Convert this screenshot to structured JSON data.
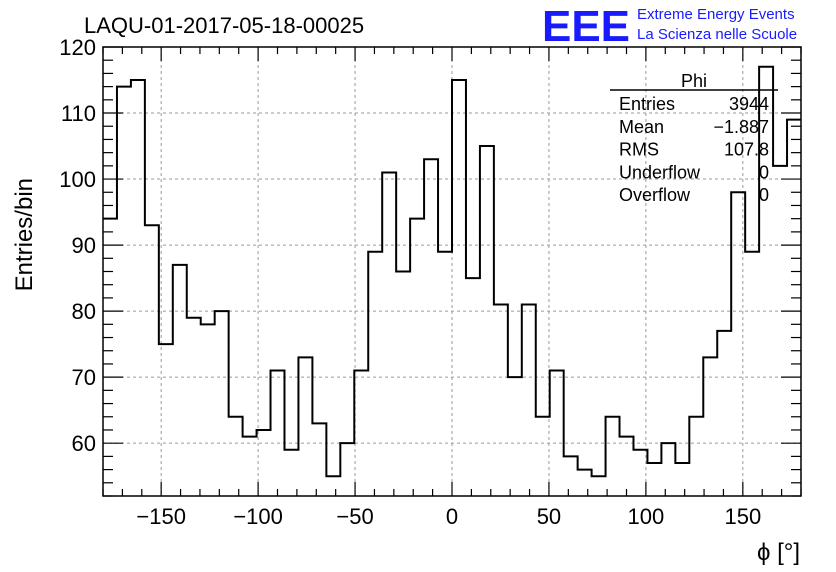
{
  "chart_data": {
    "type": "bar",
    "title": "LAQU-01-2017-05-18-00025",
    "xlabel": "ϕ [°]",
    "ylabel": "Entries/bin",
    "xlim": [
      -180,
      180
    ],
    "ylim": [
      52,
      120
    ],
    "bin_width": 7.2,
    "x_ticks": [
      -150,
      -100,
      -50,
      0,
      50,
      100,
      150
    ],
    "x_tick_labels": [
      "−150",
      "−100",
      "−50",
      "0",
      "50",
      "100",
      "150"
    ],
    "y_ticks": [
      60,
      70,
      80,
      90,
      100,
      110,
      120
    ],
    "y_tick_labels": [
      "60",
      "70",
      "80",
      "90",
      "100",
      "110",
      "120"
    ],
    "grid": true,
    "values": [
      94,
      114,
      115,
      93,
      75,
      87,
      79,
      78,
      80,
      64,
      61,
      62,
      71,
      59,
      73,
      63,
      55,
      60,
      71,
      89,
      101,
      86,
      94,
      103,
      89,
      115,
      85,
      105,
      81,
      70,
      81,
      64,
      71,
      58,
      56,
      55,
      64,
      61,
      59,
      57,
      60,
      57,
      64,
      73,
      77,
      98,
      89,
      117,
      102,
      109
    ],
    "stats": {
      "name": "Phi",
      "rows": [
        {
          "label": "Entries",
          "value": "3944"
        },
        {
          "label": "Mean",
          "value": "−1.887"
        },
        {
          "label": "RMS",
          "value": "107.8"
        },
        {
          "label": "Underflow",
          "value": "0"
        },
        {
          "label": "Overflow",
          "value": "0"
        }
      ]
    }
  },
  "logo": {
    "letters": "EEE",
    "line1": "Extreme Energy Events",
    "line2": "La Scienza nelle Scuole",
    "color": "#1a1aff"
  }
}
